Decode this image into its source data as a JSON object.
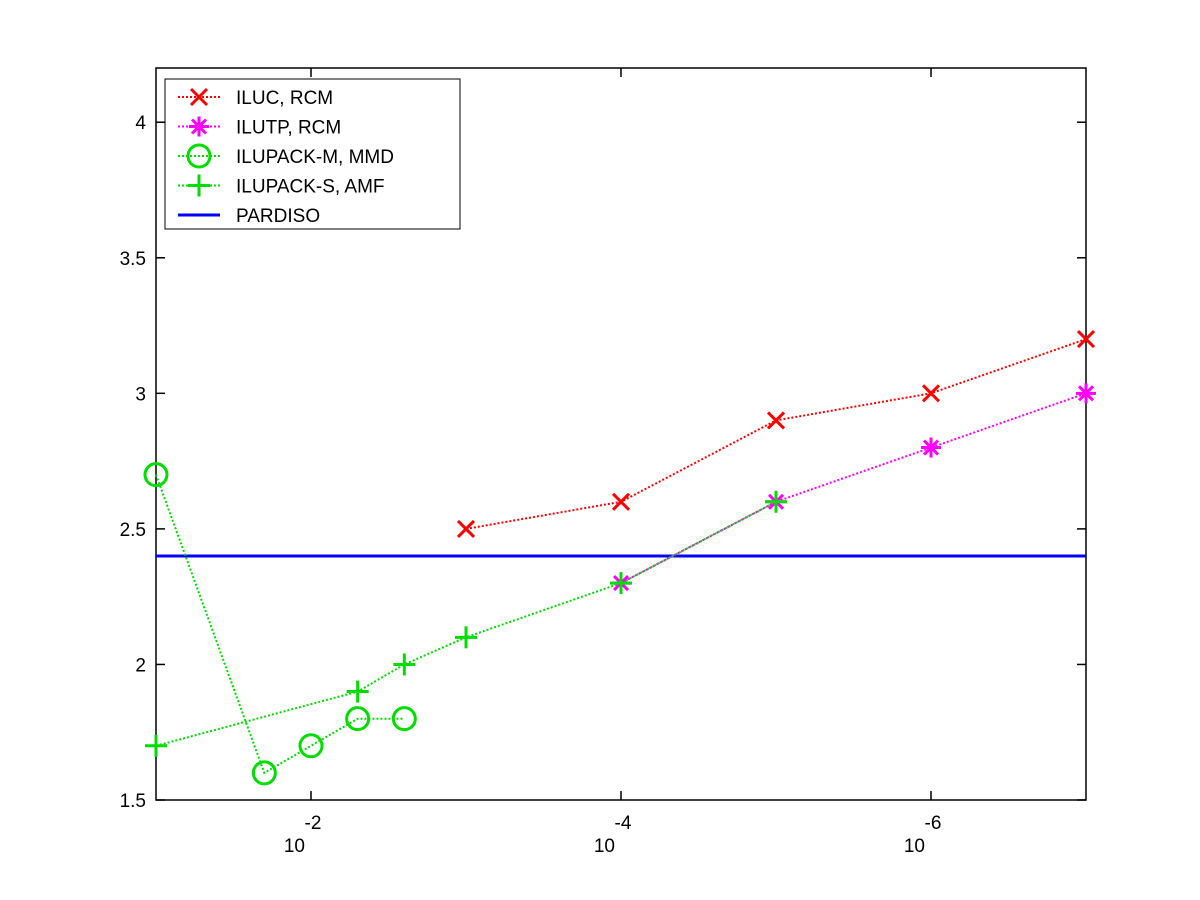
{
  "chart_data": {
    "type": "line",
    "title": "",
    "xlabel": "",
    "ylabel": "",
    "x_scale": "log-reversed",
    "xlim": [
      0.1,
      1e-07
    ],
    "ylim": [
      1.5,
      4.2
    ],
    "grid": false,
    "legend_position": "top-left",
    "y_ticks": [
      "1.5",
      "2",
      "2.5",
      "3",
      "3.5",
      "4"
    ],
    "y_tick_values": [
      1.5,
      2,
      2.5,
      3,
      3.5,
      4
    ],
    "x_ticks": [
      {
        "value": 0.01,
        "base": "10",
        "exp": "-2"
      },
      {
        "value": 0.0001,
        "base": "10",
        "exp": "-4"
      },
      {
        "value": 1e-06,
        "base": "10",
        "exp": "-6"
      }
    ],
    "series": [
      {
        "name": "ILUC, RCM",
        "color": "#ff0000",
        "marker": "x",
        "line": "dotted",
        "x": [
          0.001,
          0.0001,
          1e-05,
          1e-06,
          1e-07
        ],
        "y": [
          2.5,
          2.6,
          2.9,
          3.0,
          3.2
        ]
      },
      {
        "name": "ILUTP, RCM",
        "color": "#ff00ff",
        "marker": "star",
        "line": "dotted",
        "x": [
          0.0001,
          1e-05,
          1e-06,
          1e-07
        ],
        "y": [
          2.3,
          2.6,
          2.8,
          3.0
        ]
      },
      {
        "name": "ILUPACK-M, MMD",
        "color": "#00dd00",
        "marker": "circle",
        "line": "dotted",
        "x": [
          0.1,
          0.02,
          0.01,
          0.005,
          0.0025
        ],
        "y": [
          2.7,
          1.6,
          1.7,
          1.8,
          1.8
        ]
      },
      {
        "name": "ILUPACK-S, AMF",
        "color": "#00dd00",
        "marker": "plus",
        "line": "dotted",
        "x": [
          0.1,
          0.005,
          0.0025,
          0.001,
          0.0001,
          1e-05
        ],
        "y": [
          1.7,
          1.9,
          2.0,
          2.1,
          2.3,
          2.6
        ]
      },
      {
        "name": "PARDISO",
        "color": "#0000ff",
        "marker": "none",
        "line": "solid",
        "x": [
          0.1,
          1e-07
        ],
        "y": [
          2.4,
          2.4
        ]
      }
    ]
  }
}
